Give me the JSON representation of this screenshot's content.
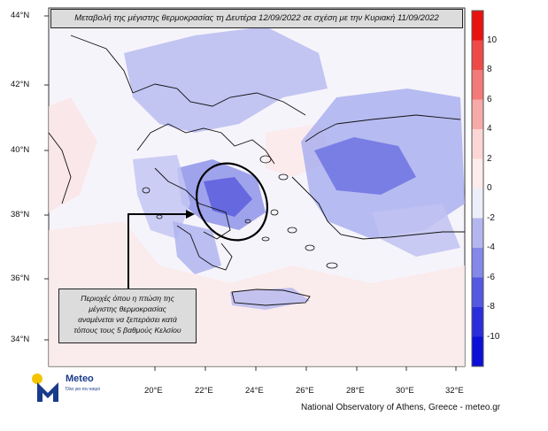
{
  "title": "Μεταβολή της μέγιστης θερμοκρασίας τη Δευτέρα 12/09/2022 σε σχέση με την Κυριακή 11/09/2022",
  "annotation": {
    "line1": "Περιοχές όπου η πτώση της",
    "line2": "μέγιστης θερμοκρασίας",
    "line3": "αναμένεται να ξεπεράσει κατά",
    "line4": "τόπους τους 5 βαθμούς Κελσίου"
  },
  "lat_ticks": [
    "44°N",
    "42°N",
    "40°N",
    "38°N",
    "36°N",
    "34°N"
  ],
  "lon_ticks": [
    "20°E",
    "22°E",
    "24°E",
    "26°E",
    "28°E",
    "30°E",
    "32°E"
  ],
  "colorbar": {
    "labels": [
      "10",
      "8",
      "6",
      "4",
      "2",
      "0",
      "-2",
      "-4",
      "-6",
      "-8",
      "-10"
    ],
    "colors": [
      "#e8120f",
      "#ef4a48",
      "#f37a78",
      "#f7a9a7",
      "#fbd6d5",
      "#fdeceb",
      "#eceef9",
      "#b4b7ef",
      "#8488e8",
      "#5458e2",
      "#2a2ddc",
      "#0b0fd8"
    ]
  },
  "credit": "National Observatory of Athens, Greece - meteo.gr",
  "logo": {
    "name": "Meteo",
    "tagline": "Όλα για τον καιρό",
    "colors": {
      "sun": "#f5c400",
      "mark": "#1a3a8a"
    }
  }
}
